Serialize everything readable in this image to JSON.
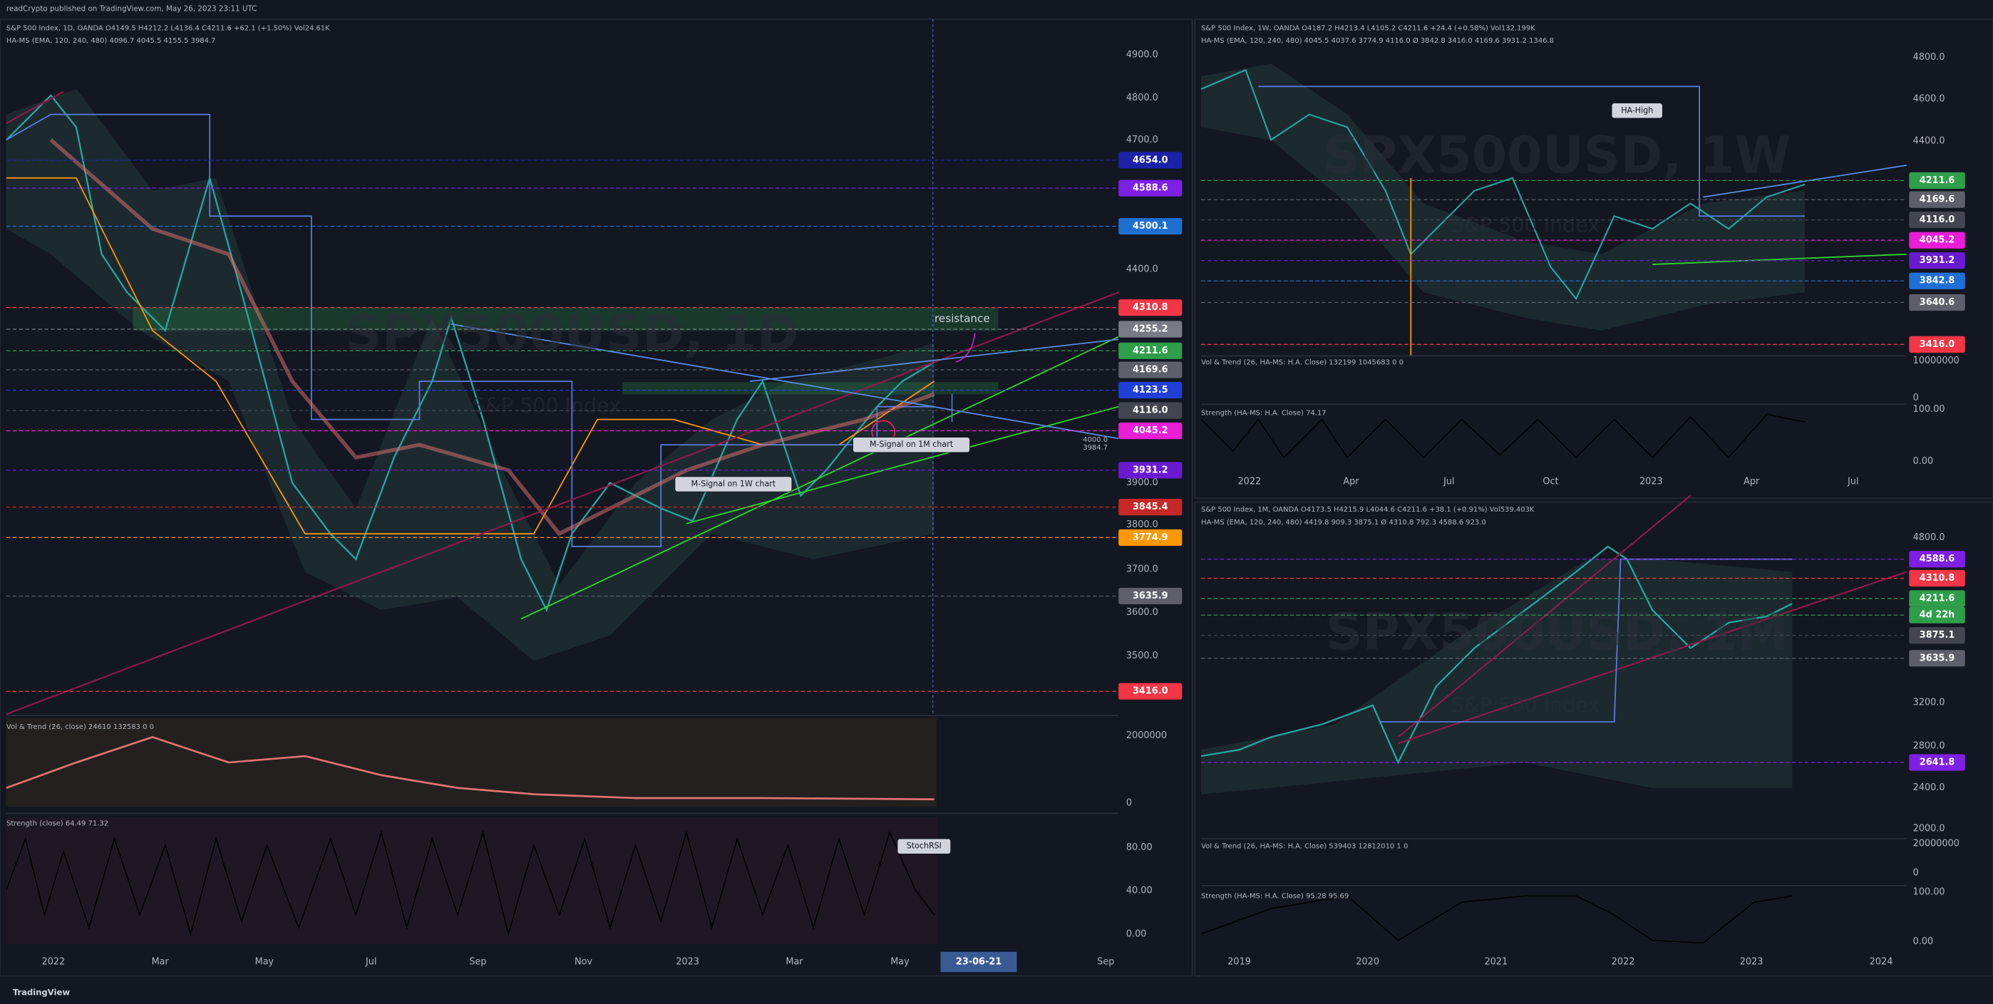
{
  "header": {
    "text": "readCrypto published on TradingView.com, May 26, 2023 23:11 UTC"
  },
  "footer": {
    "brand": "TradingView"
  },
  "panels": [
    {
      "legend": [
        "S&P 500 Index, 1D, OANDA  O4149.5 H4212.2 L4136.4 C4211.6 +62.1 (+1.50%) Vol24.61K",
        "HA-MS (EMA, 120, 240, 480) 4096.7 4045.5 4155.5 3984.7"
      ],
      "watermark": "SPX500USD, 1D",
      "watermark_sub": "S&P 500 Index",
      "price_axis": [
        "4900.0",
        "4800.0",
        "4700.0",
        "4400.0",
        "3900.0",
        "3800.0",
        "3700.0",
        "3600.0",
        "3500.0"
      ],
      "badges": [
        {
          "text": "4654.0",
          "color": "#1b22a8"
        },
        {
          "text": "4588.6",
          "color": "#7e1fe6"
        },
        {
          "text": "4500.1",
          "color": "#1e6fd0"
        },
        {
          "text": "4310.8",
          "color": "#f23645"
        },
        {
          "text": "4255.2",
          "color": "#787b86"
        },
        {
          "text": "4211.6",
          "color": "#2e9e4a"
        },
        {
          "text": "4169.6",
          "color": "#5d606b"
        },
        {
          "text": "4123.5",
          "color": "#1f3fd6"
        },
        {
          "text": "4116.0",
          "color": "#434651"
        },
        {
          "text": "4045.2",
          "color": "#e91ed7"
        },
        {
          "text": "3931.2",
          "color": "#6a1bd1"
        },
        {
          "text": "3845.4",
          "color": "#c62828"
        },
        {
          "text": "3774.9",
          "color": "#ff9800"
        },
        {
          "text": "3635.9",
          "color": "#5d606b"
        },
        {
          "text": "3416.0",
          "color": "#f23645"
        }
      ],
      "pane_axis": [
        "2000000",
        "0",
        "80.00",
        "40.00",
        "0.00"
      ],
      "pane_legends": [
        "Vol & Trend (26, close)  24610  132583  0  0",
        "Strength (close)  64.49  71.32"
      ],
      "time_axis": [
        "2022",
        "Mar",
        "May",
        "Jul",
        "Sep",
        "Nov",
        "2023",
        "Mar",
        "May",
        "Sep"
      ],
      "cursor_date": "23-06-21",
      "annotations": [
        "resistance",
        "M-Signal on 1W chart",
        "M-Signal on 1M chart",
        "StochRSI",
        "4000.0",
        "3984.7"
      ]
    },
    {
      "legend": [
        "S&P 500 Index, 1W, OANDA  O4187.2 H4213.4 L4105.2 C4211.6 +24.4 (+0.58%) Vol132.199K",
        "HA-MS (EMA, 120, 240, 480) 4045.5 4037.6 3774.9 4116.0 Ø 3842.8 3416.0 4169.6 3931.2 1346.8"
      ],
      "watermark": "SPX500USD, 1W",
      "watermark_sub": "S&P 500 Index",
      "price_axis": [
        "4800.0",
        "4600.0",
        "4400.0"
      ],
      "badges": [
        {
          "text": "4211.6",
          "color": "#2e9e4a"
        },
        {
          "text": "4169.6",
          "color": "#5d606b"
        },
        {
          "text": "4116.0",
          "color": "#434651"
        },
        {
          "text": "4045.2",
          "color": "#e91ed7"
        },
        {
          "text": "3931.2",
          "color": "#6a1bd1"
        },
        {
          "text": "3842.8",
          "color": "#1f6fd6"
        },
        {
          "text": "3640.6",
          "color": "#5d606b"
        },
        {
          "text": "3416.0",
          "color": "#f23645"
        }
      ],
      "pane_axis": [
        "10000000",
        "0",
        "100.00",
        "0.00"
      ],
      "pane_legends": [
        "Vol & Trend (26, HA-MS: H.A. Close)  132199  1045683  0  0",
        "Strength (HA-MS: H.A. Close)  74.17"
      ],
      "time_axis": [
        "2022",
        "Apr",
        "Jul",
        "Oct",
        "2023",
        "Apr",
        "Jul"
      ],
      "annotations": [
        "HA-High"
      ]
    },
    {
      "legend": [
        "S&P 500 Index, 1M, OANDA  O4173.5 H4215.9 L4044.6 C4211.6 +38.1 (+0.91%) Vol539.403K",
        "HA-MS (EMA, 120, 240, 480) 4419.8 909.3 3875.1 Ø 4310.8 792.3 4588.6 923.0"
      ],
      "watermark": "SPX500USD, 1M",
      "watermark_sub": "S&P 500 Index",
      "price_axis": [
        "4800.0",
        "3200.0",
        "2800.0",
        "2400.0",
        "2000.0"
      ],
      "badges": [
        {
          "text": "4588.6",
          "color": "#7e1fe6"
        },
        {
          "text": "4310.8",
          "color": "#f23645"
        },
        {
          "text": "4211.6",
          "color": "#2e9e4a"
        },
        {
          "text": "4d 22h",
          "color": "#2e9e4a"
        },
        {
          "text": "3875.1",
          "color": "#434651"
        },
        {
          "text": "3635.9",
          "color": "#5d606b"
        },
        {
          "text": "2641.8",
          "color": "#7e1fe6"
        }
      ],
      "pane_axis": [
        "20000000",
        "0",
        "100.00",
        "0.00"
      ],
      "pane_legends": [
        "Vol & Trend (26, HA-MS: H.A. Close)  539403  12812010  1  0",
        "Strength (HA-MS: H.A. Close)  95.28  95.69"
      ],
      "time_axis": [
        "2019",
        "2020",
        "2021",
        "2022",
        "2023",
        "2024"
      ]
    }
  ]
}
